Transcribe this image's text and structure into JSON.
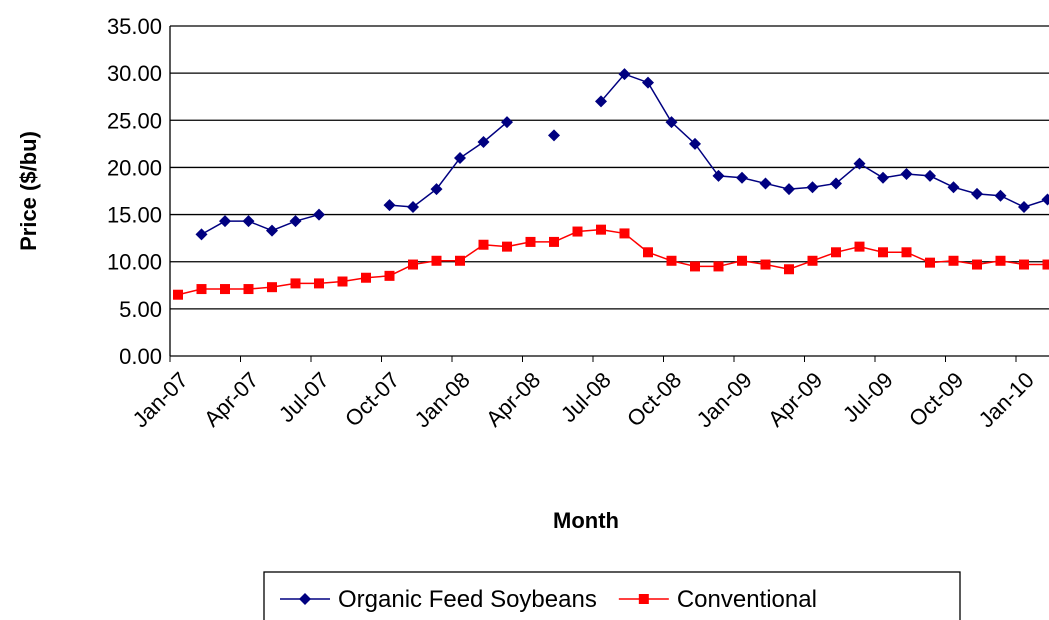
{
  "chart_data": {
    "type": "line",
    "y_label": "Price ($/bu)",
    "x_label": "Month",
    "categories": [
      "Jan-07",
      null,
      null,
      "Apr-07",
      null,
      null,
      "Jul-07",
      null,
      null,
      "Oct-07",
      null,
      null,
      "Jan-08",
      null,
      null,
      "Apr-08",
      null,
      null,
      "Jul-08",
      null,
      null,
      "Oct-08",
      null,
      null,
      "Jan-09",
      null,
      null,
      "Apr-09",
      null,
      null,
      "Jul-09",
      null,
      null,
      "Oct-09",
      null,
      null,
      "Jan-10",
      null
    ],
    "series": [
      {
        "name": "Organic Feed Soybeans",
        "color": "#000080",
        "marker": "diamond",
        "values": [
          null,
          12.9,
          14.3,
          14.3,
          13.3,
          14.3,
          15.0,
          null,
          null,
          16.0,
          15.8,
          17.7,
          21.0,
          22.7,
          24.8,
          null,
          23.4,
          null,
          27.0,
          29.9,
          29.0,
          24.8,
          22.5,
          19.1,
          18.9,
          18.3,
          17.7,
          17.9,
          18.3,
          20.4,
          18.9,
          19.3,
          19.1,
          17.9,
          17.2,
          17.0,
          15.8,
          16.6
        ]
      },
      {
        "name": "Conventional",
        "color": "#ff0000",
        "marker": "square",
        "values": [
          6.5,
          7.1,
          7.1,
          7.1,
          7.3,
          7.7,
          7.7,
          7.9,
          8.3,
          8.5,
          9.7,
          10.1,
          10.1,
          11.8,
          11.6,
          12.1,
          12.1,
          13.2,
          13.4,
          13.0,
          11.0,
          10.1,
          9.5,
          9.5,
          10.1,
          9.7,
          9.2,
          10.1,
          11.0,
          11.6,
          11.0,
          11.0,
          9.9,
          10.1,
          9.7,
          10.1,
          9.7,
          9.7
        ]
      }
    ],
    "ylim": [
      0,
      35
    ],
    "yticks": [
      {
        "value": 0,
        "label": "0.00"
      },
      {
        "value": 5,
        "label": "5.00"
      },
      {
        "value": 10,
        "label": "10.00"
      },
      {
        "value": 15,
        "label": "15.00"
      },
      {
        "value": 20,
        "label": "20.00"
      },
      {
        "value": 25,
        "label": "25.00"
      },
      {
        "value": 30,
        "label": "30.00"
      },
      {
        "value": 35,
        "label": "35.00"
      }
    ],
    "grid": true,
    "legend": "bottom"
  }
}
